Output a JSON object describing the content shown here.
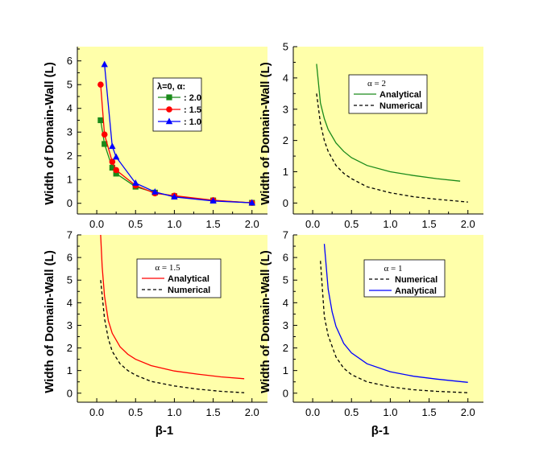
{
  "chart_data": [
    {
      "type": "line",
      "xlabel": "β-1",
      "ylabel": "Width of Domain-Wall (L)",
      "xlim": [
        -0.25,
        2.2
      ],
      "ylim": [
        -0.45,
        6.6
      ],
      "xticks": [
        "0.0",
        "0.5",
        "1.0",
        "1.5",
        "2.0"
      ],
      "yticks": [
        "0",
        "1",
        "2",
        "3",
        "4",
        "5",
        "6"
      ],
      "legend": {
        "title": "λ=0, α:",
        "position": "top-right",
        "entries": [
          ": 2.0",
          ": 1.5",
          ": 1.0"
        ]
      },
      "series": [
        {
          "name": "2.0",
          "marker": "square",
          "color": "#1a8a1a",
          "x": [
            0.05,
            0.1,
            0.2,
            0.25,
            0.5,
            0.75,
            1.0,
            1.5,
            2.0
          ],
          "y": [
            3.5,
            2.5,
            1.5,
            1.25,
            0.7,
            0.45,
            0.3,
            0.12,
            0.02
          ]
        },
        {
          "name": "1.5",
          "marker": "circle",
          "color": "#ff0000",
          "x": [
            0.05,
            0.1,
            0.2,
            0.25,
            0.5,
            0.75,
            1.0,
            1.5,
            2.0
          ],
          "y": [
            5.0,
            2.9,
            1.75,
            1.4,
            0.75,
            0.42,
            0.32,
            0.13,
            0.02
          ]
        },
        {
          "name": "1.0",
          "marker": "triangle",
          "color": "#0000ff",
          "x": [
            0.1,
            0.2,
            0.25,
            0.5,
            0.75,
            1.0,
            1.5,
            2.0
          ],
          "y": [
            5.85,
            2.4,
            1.95,
            0.85,
            0.48,
            0.27,
            0.1,
            0.02
          ]
        }
      ]
    },
    {
      "type": "line",
      "xlabel": "β-1",
      "ylabel": "Width of Domain-Wall (L)",
      "xlim": [
        -0.25,
        2.2
      ],
      "ylim": [
        -0.35,
        5.0
      ],
      "xticks": [
        "0.0",
        "0.5",
        "1.0",
        "1.5",
        "2.0"
      ],
      "yticks": [
        "0",
        "1",
        "2",
        "3",
        "4",
        "5"
      ],
      "legend": {
        "title": "α = 2",
        "position": "top-right",
        "entries": [
          "Analytical",
          "Numerical"
        ]
      },
      "series": [
        {
          "name": "Analytical",
          "style": "solid",
          "color": "#1a8a1a",
          "x": [
            0.05,
            0.1,
            0.15,
            0.2,
            0.3,
            0.4,
            0.5,
            0.7,
            1.0,
            1.3,
            1.6,
            1.9
          ],
          "y": [
            4.45,
            3.2,
            2.7,
            2.35,
            1.92,
            1.65,
            1.45,
            1.2,
            1.0,
            0.88,
            0.78,
            0.7
          ]
        },
        {
          "name": "Numerical",
          "style": "dashed",
          "color": "#000000",
          "x": [
            0.05,
            0.1,
            0.15,
            0.2,
            0.3,
            0.4,
            0.5,
            0.7,
            1.0,
            1.3,
            1.6,
            2.0
          ],
          "y": [
            3.5,
            2.55,
            2.0,
            1.65,
            1.2,
            0.95,
            0.78,
            0.52,
            0.33,
            0.2,
            0.12,
            0.03
          ]
        }
      ]
    },
    {
      "type": "line",
      "xlabel": "β-1",
      "ylabel": "Width of Domain-Wall (L)",
      "xlim": [
        -0.25,
        2.2
      ],
      "ylim": [
        -0.4,
        7.0
      ],
      "xticks": [
        "0.0",
        "0.5",
        "1.0",
        "1.5",
        "2.0"
      ],
      "yticks": [
        "0",
        "1",
        "2",
        "3",
        "4",
        "5",
        "6",
        "7"
      ],
      "legend": {
        "title": "α = 1.5",
        "position": "top-right",
        "entries": [
          "Analytical",
          "Numerical"
        ]
      },
      "series": [
        {
          "name": "Analytical",
          "style": "solid",
          "color": "#ff0000",
          "x": [
            0.05,
            0.07,
            0.1,
            0.15,
            0.2,
            0.3,
            0.4,
            0.5,
            0.7,
            1.0,
            1.3,
            1.6,
            1.9
          ],
          "y": [
            7.0,
            5.6,
            4.3,
            3.2,
            2.65,
            2.05,
            1.72,
            1.5,
            1.22,
            0.98,
            0.84,
            0.72,
            0.64
          ]
        },
        {
          "name": "Numerical",
          "style": "dashed",
          "color": "#000000",
          "x": [
            0.05,
            0.1,
            0.15,
            0.2,
            0.3,
            0.4,
            0.5,
            0.7,
            1.0,
            1.3,
            1.6,
            1.9
          ],
          "y": [
            5.0,
            3.3,
            2.4,
            1.85,
            1.3,
            1.0,
            0.8,
            0.52,
            0.32,
            0.18,
            0.08,
            0.02
          ]
        }
      ]
    },
    {
      "type": "line",
      "xlabel": "β-1",
      "ylabel": "Width of Domain-Wall (L)",
      "xlim": [
        -0.25,
        2.2
      ],
      "ylim": [
        -0.4,
        7.0
      ],
      "xticks": [
        "0.0",
        "0.5",
        "1.0",
        "1.5",
        "2.0"
      ],
      "yticks": [
        "0",
        "1",
        "2",
        "3",
        "4",
        "5",
        "6",
        "7"
      ],
      "legend": {
        "title": "α = 1",
        "position": "top-right",
        "entries": [
          "Numerical",
          "Analytical"
        ]
      },
      "series": [
        {
          "name": "Numerical",
          "style": "dashed",
          "color": "#000000",
          "x": [
            0.1,
            0.15,
            0.2,
            0.3,
            0.4,
            0.5,
            0.7,
            1.0,
            1.3,
            1.6,
            2.0
          ],
          "y": [
            5.85,
            3.4,
            2.55,
            1.6,
            1.1,
            0.82,
            0.5,
            0.28,
            0.15,
            0.08,
            0.02
          ]
        },
        {
          "name": "Analytical",
          "style": "solid",
          "color": "#0000ff",
          "x": [
            0.15,
            0.2,
            0.25,
            0.3,
            0.4,
            0.5,
            0.7,
            1.0,
            1.3,
            1.6,
            2.0
          ],
          "y": [
            6.6,
            4.6,
            3.6,
            2.95,
            2.2,
            1.78,
            1.3,
            0.95,
            0.75,
            0.62,
            0.48
          ]
        }
      ]
    }
  ]
}
